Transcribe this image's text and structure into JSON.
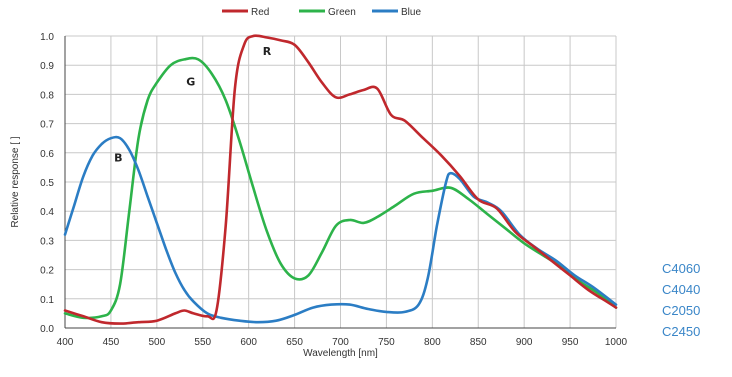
{
  "chart_data": {
    "type": "line",
    "title": "",
    "xlabel": "Wavelength [nm]",
    "ylabel": "Relative response [ ]",
    "xlim": [
      400,
      1000
    ],
    "ylim": [
      0,
      1.0
    ],
    "xticks": [
      "400",
      "450",
      "500",
      "550",
      "600",
      "650",
      "700",
      "750",
      "800",
      "850",
      "900",
      "950",
      "1000"
    ],
    "yticks": [
      "0.0",
      "0.1",
      "0.2",
      "0.3",
      "0.4",
      "0.5",
      "0.6",
      "0.7",
      "0.8",
      "0.9",
      "1.0"
    ],
    "grid": true,
    "legend_position": "top-center",
    "series": [
      {
        "name": "Red",
        "color": "#c0282d",
        "marker": "R",
        "points": [
          [
            400,
            0.06
          ],
          [
            420,
            0.04
          ],
          [
            440,
            0.02
          ],
          [
            460,
            0.015
          ],
          [
            480,
            0.02
          ],
          [
            500,
            0.025
          ],
          [
            520,
            0.05
          ],
          [
            530,
            0.06
          ],
          [
            540,
            0.05
          ],
          [
            555,
            0.04
          ],
          [
            565,
            0.06
          ],
          [
            575,
            0.35
          ],
          [
            585,
            0.82
          ],
          [
            595,
            0.97
          ],
          [
            605,
            1.0
          ],
          [
            620,
            0.995
          ],
          [
            635,
            0.985
          ],
          [
            650,
            0.97
          ],
          [
            665,
            0.91
          ],
          [
            680,
            0.84
          ],
          [
            695,
            0.79
          ],
          [
            710,
            0.8
          ],
          [
            725,
            0.815
          ],
          [
            740,
            0.82
          ],
          [
            755,
            0.73
          ],
          [
            770,
            0.71
          ],
          [
            790,
            0.65
          ],
          [
            810,
            0.59
          ],
          [
            830,
            0.52
          ],
          [
            850,
            0.44
          ],
          [
            870,
            0.41
          ],
          [
            890,
            0.33
          ],
          [
            910,
            0.28
          ],
          [
            930,
            0.23
          ],
          [
            950,
            0.18
          ],
          [
            970,
            0.13
          ],
          [
            990,
            0.09
          ],
          [
            1000,
            0.07
          ]
        ]
      },
      {
        "name": "Green",
        "color": "#2db34a",
        "marker": "G",
        "points": [
          [
            400,
            0.05
          ],
          [
            420,
            0.035
          ],
          [
            440,
            0.04
          ],
          [
            450,
            0.06
          ],
          [
            460,
            0.15
          ],
          [
            470,
            0.4
          ],
          [
            480,
            0.65
          ],
          [
            490,
            0.78
          ],
          [
            500,
            0.84
          ],
          [
            515,
            0.9
          ],
          [
            530,
            0.92
          ],
          [
            545,
            0.92
          ],
          [
            560,
            0.87
          ],
          [
            575,
            0.78
          ],
          [
            590,
            0.64
          ],
          [
            605,
            0.48
          ],
          [
            620,
            0.33
          ],
          [
            635,
            0.22
          ],
          [
            650,
            0.17
          ],
          [
            665,
            0.18
          ],
          [
            680,
            0.26
          ],
          [
            695,
            0.35
          ],
          [
            710,
            0.37
          ],
          [
            725,
            0.36
          ],
          [
            740,
            0.38
          ],
          [
            760,
            0.42
          ],
          [
            780,
            0.46
          ],
          [
            800,
            0.47
          ],
          [
            820,
            0.48
          ],
          [
            840,
            0.44
          ],
          [
            860,
            0.39
          ],
          [
            880,
            0.34
          ],
          [
            900,
            0.29
          ],
          [
            920,
            0.25
          ],
          [
            940,
            0.21
          ],
          [
            960,
            0.16
          ],
          [
            980,
            0.12
          ],
          [
            1000,
            0.07
          ]
        ]
      },
      {
        "name": "Blue",
        "color": "#2b7dc4",
        "marker": "B",
        "points": [
          [
            400,
            0.32
          ],
          [
            410,
            0.42
          ],
          [
            420,
            0.52
          ],
          [
            430,
            0.59
          ],
          [
            440,
            0.63
          ],
          [
            450,
            0.65
          ],
          [
            460,
            0.65
          ],
          [
            470,
            0.61
          ],
          [
            480,
            0.54
          ],
          [
            490,
            0.45
          ],
          [
            500,
            0.36
          ],
          [
            510,
            0.27
          ],
          [
            520,
            0.19
          ],
          [
            530,
            0.13
          ],
          [
            540,
            0.09
          ],
          [
            555,
            0.05
          ],
          [
            570,
            0.035
          ],
          [
            590,
            0.025
          ],
          [
            610,
            0.02
          ],
          [
            630,
            0.025
          ],
          [
            650,
            0.045
          ],
          [
            670,
            0.07
          ],
          [
            690,
            0.08
          ],
          [
            710,
            0.08
          ],
          [
            730,
            0.065
          ],
          [
            750,
            0.055
          ],
          [
            770,
            0.055
          ],
          [
            785,
            0.08
          ],
          [
            795,
            0.17
          ],
          [
            805,
            0.35
          ],
          [
            815,
            0.5
          ],
          [
            820,
            0.53
          ],
          [
            830,
            0.51
          ],
          [
            845,
            0.45
          ],
          [
            860,
            0.43
          ],
          [
            875,
            0.4
          ],
          [
            895,
            0.32
          ],
          [
            915,
            0.27
          ],
          [
            935,
            0.23
          ],
          [
            955,
            0.18
          ],
          [
            975,
            0.14
          ],
          [
            1000,
            0.08
          ]
        ]
      }
    ]
  },
  "legend": {
    "items": [
      {
        "label": "Red",
        "color": "#c0282d"
      },
      {
        "label": "Green",
        "color": "#2db34a"
      },
      {
        "label": "Blue",
        "color": "#2b7dc4"
      }
    ]
  },
  "models": [
    "C4060",
    "C4040",
    "C2050",
    "C2450"
  ],
  "colors": {
    "grid": "#c8c8c8",
    "axis": "#444444",
    "model_text": "#3a86c8"
  }
}
